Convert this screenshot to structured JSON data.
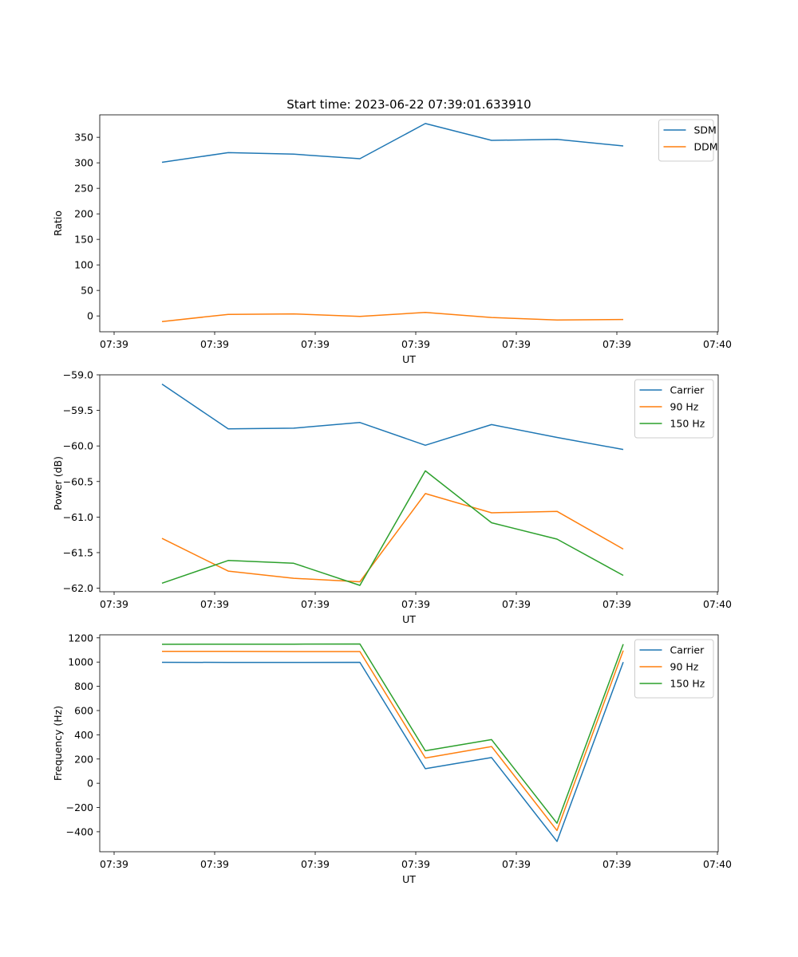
{
  "title": "Start time: 2023-06-22 07:39:01.633910",
  "colors": {
    "c0": "#1f77b4",
    "c1": "#ff7f0e",
    "c2": "#2ca02c"
  },
  "chart_data": [
    {
      "type": "line",
      "xlabel": "UT",
      "ylabel": "Ratio",
      "x_tick_labels": [
        "07:39",
        "07:39",
        "07:39",
        "07:39",
        "07:39",
        "07:39",
        "07:40"
      ],
      "y_ticks": [
        0,
        50,
        100,
        150,
        200,
        250,
        300,
        350
      ],
      "ylim": [
        -31,
        394
      ],
      "legend_position": "top-right",
      "series": [
        {
          "name": "SDM",
          "color": "#1f77b4",
          "values": [
            301,
            320,
            317,
            308,
            377,
            344,
            346,
            333
          ]
        },
        {
          "name": "DDM",
          "color": "#ff7f0e",
          "values": [
            -11,
            3,
            4,
            -1,
            7,
            -3,
            -8,
            -7
          ]
        }
      ]
    },
    {
      "type": "line",
      "xlabel": "UT",
      "ylabel": "Power (dB)",
      "x_tick_labels": [
        "07:39",
        "07:39",
        "07:39",
        "07:39",
        "07:39",
        "07:39",
        "07:40"
      ],
      "y_ticks": [
        -62.0,
        -61.5,
        -61.0,
        -60.5,
        -60.0,
        -59.5,
        -59.0
      ],
      "y_tick_labels": [
        "−62.0",
        "−61.5",
        "−61.0",
        "−60.5",
        "−60.0",
        "−59.5",
        "−59.0"
      ],
      "ylim": [
        -62.05,
        -59.0
      ],
      "legend_position": "top-right",
      "series": [
        {
          "name": "Carrier",
          "color": "#1f77b4",
          "values": [
            -59.13,
            -59.76,
            -59.75,
            -59.67,
            -59.99,
            -59.7,
            -59.88,
            -60.05
          ]
        },
        {
          "name": "90 Hz",
          "color": "#ff7f0e",
          "values": [
            -61.3,
            -61.76,
            -61.86,
            -61.91,
            -60.67,
            -60.94,
            -60.92,
            -61.45
          ]
        },
        {
          "name": "150 Hz",
          "color": "#2ca02c",
          "values": [
            -61.93,
            -61.61,
            -61.65,
            -61.96,
            -60.35,
            -61.08,
            -61.31,
            -61.82
          ]
        }
      ]
    },
    {
      "type": "line",
      "xlabel": "UT",
      "ylabel": "Frequency (Hz)",
      "x_tick_labels": [
        "07:39",
        "07:39",
        "07:39",
        "07:39",
        "07:39",
        "07:39",
        "07:40"
      ],
      "y_ticks": [
        -400,
        -200,
        0,
        200,
        400,
        600,
        800,
        1000,
        1200
      ],
      "y_tick_labels": [
        "−400",
        "−200",
        "0",
        "200",
        "400",
        "600",
        "800",
        "1000",
        "1200"
      ],
      "ylim": [
        -565,
        1225
      ],
      "legend_position": "top-right",
      "series": [
        {
          "name": "Carrier",
          "color": "#1f77b4",
          "values": [
            998,
            997,
            997,
            998,
            120,
            212,
            -480,
            1000
          ]
        },
        {
          "name": "90 Hz",
          "color": "#ff7f0e",
          "values": [
            1088,
            1088,
            1087,
            1087,
            208,
            303,
            -390,
            1095
          ]
        },
        {
          "name": "150 Hz",
          "color": "#2ca02c",
          "values": [
            1147,
            1148,
            1148,
            1149,
            268,
            360,
            -330,
            1148
          ]
        }
      ]
    }
  ]
}
